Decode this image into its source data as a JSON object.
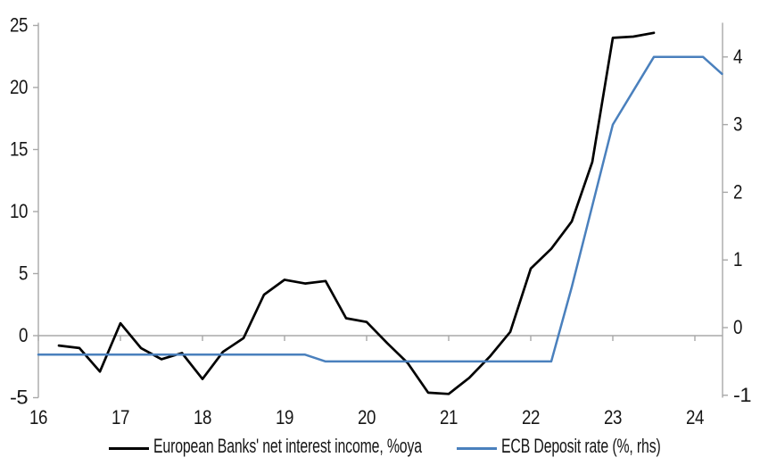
{
  "chart_data": {
    "type": "line",
    "title": "",
    "grid": "zero-line-only",
    "legend_position": "bottom-center",
    "axis_color": "#a8a8a8",
    "text_color": "#161616",
    "x_axis": {
      "label": "",
      "tick_values": [
        16,
        17,
        18,
        19,
        20,
        21,
        22,
        23,
        24
      ],
      "tick_labels": [
        "16",
        "17",
        "18",
        "19",
        "20",
        "21",
        "22",
        "23",
        "24"
      ],
      "range": [
        16,
        24.4
      ]
    },
    "y_axis_left": {
      "label": "",
      "tick_values": [
        -5,
        0,
        5,
        10,
        15,
        20,
        25
      ],
      "tick_labels": [
        "-5",
        "0",
        "5",
        "10",
        "15",
        "20",
        "25"
      ],
      "range": [
        -5,
        25.2
      ]
    },
    "y_axis_right": {
      "label": "",
      "tick_values": [
        -1,
        0,
        1,
        2,
        3,
        4
      ],
      "tick_labels": [
        "-1",
        "0",
        "1",
        "2",
        "3",
        "4"
      ],
      "range": [
        -1,
        4.55
      ]
    },
    "series": [
      {
        "name": "European Banks' net interest income, %oya",
        "axis": "left",
        "color": "#000000",
        "stroke_width": 2.7,
        "points": [
          [
            16.25,
            -0.8
          ],
          [
            16.5,
            -1.0
          ],
          [
            16.75,
            -2.9
          ],
          [
            17.0,
            1.0
          ],
          [
            17.25,
            -1.0
          ],
          [
            17.5,
            -1.9
          ],
          [
            17.75,
            -1.4
          ],
          [
            18.0,
            -3.5
          ],
          [
            18.25,
            -1.3
          ],
          [
            18.5,
            -0.2
          ],
          [
            18.75,
            3.3
          ],
          [
            19.0,
            4.5
          ],
          [
            19.25,
            4.2
          ],
          [
            19.5,
            4.4
          ],
          [
            19.75,
            1.4
          ],
          [
            20.0,
            1.1
          ],
          [
            20.25,
            -0.6
          ],
          [
            20.5,
            -2.2
          ],
          [
            20.75,
            -4.6
          ],
          [
            21.0,
            -4.7
          ],
          [
            21.25,
            -3.4
          ],
          [
            21.5,
            -1.7
          ],
          [
            21.75,
            0.3
          ],
          [
            22.0,
            5.4
          ],
          [
            22.25,
            7.0
          ],
          [
            22.5,
            9.2
          ],
          [
            22.75,
            14.0
          ],
          [
            23.0,
            24.0
          ],
          [
            23.25,
            24.1
          ],
          [
            23.5,
            24.4
          ]
        ]
      },
      {
        "name": "ECB Deposit rate (%, rhs)",
        "axis": "right",
        "color": "#4a80bd",
        "stroke_width": 2.5,
        "points": [
          [
            16.0,
            -0.4
          ],
          [
            16.25,
            -0.4
          ],
          [
            16.5,
            -0.4
          ],
          [
            16.75,
            -0.4
          ],
          [
            17.0,
            -0.4
          ],
          [
            17.25,
            -0.4
          ],
          [
            17.5,
            -0.4
          ],
          [
            17.75,
            -0.4
          ],
          [
            18.0,
            -0.4
          ],
          [
            18.25,
            -0.4
          ],
          [
            18.5,
            -0.4
          ],
          [
            18.75,
            -0.4
          ],
          [
            19.0,
            -0.4
          ],
          [
            19.25,
            -0.4
          ],
          [
            19.5,
            -0.5
          ],
          [
            19.75,
            -0.5
          ],
          [
            20.0,
            -0.5
          ],
          [
            20.25,
            -0.5
          ],
          [
            20.5,
            -0.5
          ],
          [
            20.75,
            -0.5
          ],
          [
            21.0,
            -0.5
          ],
          [
            21.25,
            -0.5
          ],
          [
            21.5,
            -0.5
          ],
          [
            21.75,
            -0.5
          ],
          [
            22.0,
            -0.5
          ],
          [
            22.25,
            -0.5
          ],
          [
            22.5,
            0.6
          ],
          [
            22.75,
            1.8
          ],
          [
            23.0,
            3.0
          ],
          [
            23.25,
            3.5
          ],
          [
            23.5,
            4.0
          ],
          [
            23.75,
            4.0
          ],
          [
            24.0,
            4.0
          ],
          [
            24.1,
            4.0
          ],
          [
            24.33,
            3.75
          ]
        ]
      }
    ]
  }
}
